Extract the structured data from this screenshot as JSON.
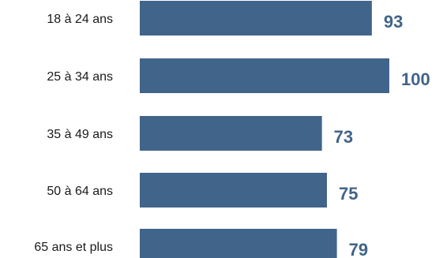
{
  "chart_data": {
    "type": "bar",
    "orientation": "horizontal",
    "categories": [
      "18 à 24 ans",
      "25 à 34 ans",
      "35 à 49 ans",
      "50 à 64 ans",
      "65 ans et plus"
    ],
    "values": [
      93,
      100,
      73,
      75,
      79
    ],
    "value_labels": [
      "93",
      "100",
      "73",
      "75",
      "79"
    ],
    "title": "",
    "xlabel": "",
    "ylabel": "",
    "xlim": [
      0,
      100
    ],
    "grid": false,
    "legend": "none",
    "colors": {
      "bar": "#41648a",
      "value_label": "#41648a",
      "category_label": "#1a1a1a"
    }
  }
}
